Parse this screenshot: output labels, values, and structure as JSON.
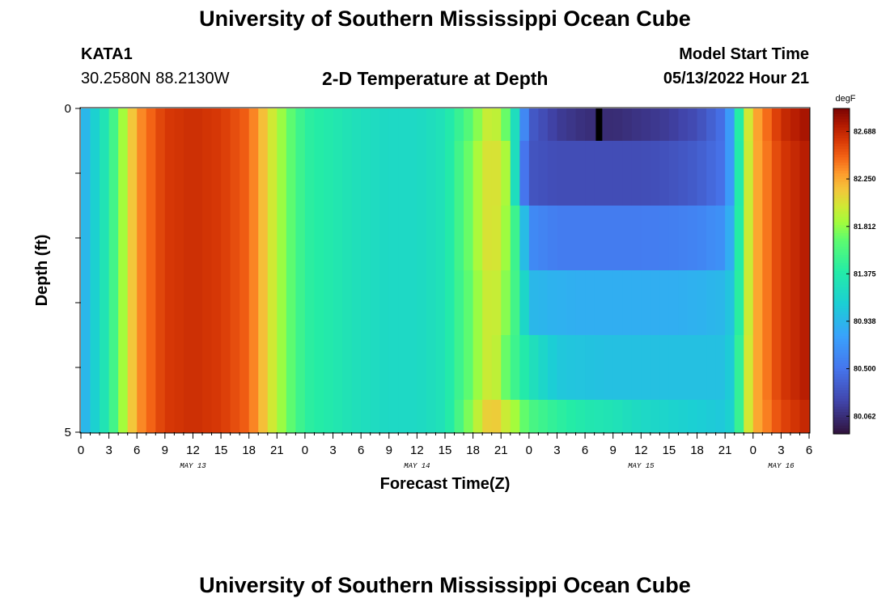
{
  "header": {
    "title": "University of Southern Mississippi Ocean Cube",
    "station": "KATA1",
    "coordinates": "30.2580N  88.2130W",
    "subtitle": "2-D Temperature at Depth",
    "model_start_label": "Model Start Time",
    "model_start_value": "05/13/2022 Hour 21"
  },
  "footer": {
    "title": "University of Southern Mississippi Ocean Cube"
  },
  "chart_data": {
    "type": "heatmap",
    "title": "2-D Temperature at Depth",
    "xlabel": "Forecast Time(Z)",
    "ylabel": "Depth (ft)",
    "ylim": [
      0,
      5
    ],
    "y_ticks": [
      "0",
      "5"
    ],
    "x_tick_labels": [
      "0",
      "3",
      "6",
      "9",
      "12",
      "15",
      "18",
      "21",
      "0",
      "3",
      "6",
      "9",
      "12",
      "15",
      "18",
      "21",
      "0",
      "3",
      "6",
      "9",
      "12",
      "15",
      "18",
      "21",
      "0",
      "3",
      "6"
    ],
    "date_labels": [
      {
        "label": "MAY 13",
        "hour": 12
      },
      {
        "label": "MAY 14",
        "hour": 36
      },
      {
        "label": "MAY 15",
        "hour": 60
      },
      {
        "label": "MAY 16",
        "hour": 75
      }
    ],
    "x_range_hours": [
      0,
      78
    ],
    "colorbar": {
      "unit": "degF",
      "ticks": [
        "82.688",
        "82.250",
        "81.812",
        "81.375",
        "80.938",
        "80.500",
        "80.062"
      ],
      "range": [
        79.9,
        82.9
      ]
    },
    "depth_layers": [
      {
        "label": "layer-1",
        "from_ft": 0.0,
        "to_ft": 0.5
      },
      {
        "label": "layer-2",
        "from_ft": 0.5,
        "to_ft": 1.5
      },
      {
        "label": "layer-3",
        "from_ft": 1.5,
        "to_ft": 2.5
      },
      {
        "label": "layer-4",
        "from_ft": 2.5,
        "to_ft": 3.5
      },
      {
        "label": "layer-5",
        "from_ft": 3.5,
        "to_ft": 4.5
      },
      {
        "label": "layer-6",
        "from_ft": 4.5,
        "to_ft": 5.0
      }
    ],
    "temperature_profile": [
      {
        "hour": 0,
        "values": [
          80.85,
          80.85,
          80.85,
          80.85,
          80.85,
          80.85
        ]
      },
      {
        "hour": 3,
        "values": [
          81.4,
          81.4,
          81.4,
          81.4,
          81.4,
          81.4
        ]
      },
      {
        "hour": 6,
        "values": [
          82.3,
          82.3,
          82.3,
          82.3,
          82.3,
          82.3
        ]
      },
      {
        "hour": 9,
        "values": [
          82.6,
          82.6,
          82.6,
          82.6,
          82.6,
          82.6
        ]
      },
      {
        "hour": 12,
        "values": [
          82.65,
          82.65,
          82.65,
          82.65,
          82.65,
          82.65
        ]
      },
      {
        "hour": 15,
        "values": [
          82.6,
          82.6,
          82.6,
          82.6,
          82.6,
          82.6
        ]
      },
      {
        "hour": 18,
        "values": [
          82.45,
          82.45,
          82.45,
          82.45,
          82.45,
          82.45
        ]
      },
      {
        "hour": 21,
        "values": [
          81.9,
          81.9,
          81.9,
          81.9,
          81.9,
          81.9
        ]
      },
      {
        "hour": 24,
        "values": [
          81.45,
          81.45,
          81.45,
          81.45,
          81.45,
          81.45
        ]
      },
      {
        "hour": 27,
        "values": [
          81.35,
          81.35,
          81.35,
          81.35,
          81.35,
          81.35
        ]
      },
      {
        "hour": 30,
        "values": [
          81.25,
          81.25,
          81.25,
          81.25,
          81.25,
          81.25
        ]
      },
      {
        "hour": 33,
        "values": [
          81.2,
          81.2,
          81.2,
          81.2,
          81.2,
          81.2
        ]
      },
      {
        "hour": 36,
        "values": [
          81.2,
          81.2,
          81.2,
          81.2,
          81.2,
          81.2
        ]
      },
      {
        "hour": 39,
        "values": [
          81.3,
          81.3,
          81.3,
          81.3,
          81.3,
          81.3
        ]
      },
      {
        "hour": 42,
        "values": [
          81.7,
          81.8,
          81.8,
          81.75,
          81.75,
          81.85
        ]
      },
      {
        "hour": 44,
        "values": [
          82.05,
          82.1,
          82.1,
          82.05,
          82.05,
          82.2
        ]
      },
      {
        "hour": 46,
        "values": [
          81.6,
          81.8,
          81.75,
          81.7,
          81.6,
          81.9
        ]
      },
      {
        "hour": 47,
        "values": [
          80.9,
          80.7,
          81.3,
          81.4,
          81.45,
          81.8
        ]
      },
      {
        "hour": 48,
        "values": [
          80.35,
          80.3,
          80.65,
          80.95,
          81.3,
          81.6
        ]
      },
      {
        "hour": 51,
        "values": [
          80.15,
          80.25,
          80.55,
          80.9,
          81.05,
          81.45
        ]
      },
      {
        "hour": 54,
        "values": [
          80.07,
          80.25,
          80.55,
          80.88,
          81.02,
          81.35
        ]
      },
      {
        "hour": 57,
        "values": [
          80.05,
          80.25,
          80.55,
          80.88,
          81.0,
          81.3
        ]
      },
      {
        "hour": 60,
        "values": [
          80.1,
          80.25,
          80.55,
          80.88,
          81.0,
          81.2
        ]
      },
      {
        "hour": 63,
        "values": [
          80.15,
          80.28,
          80.56,
          80.88,
          81.0,
          81.15
        ]
      },
      {
        "hour": 66,
        "values": [
          80.25,
          80.35,
          80.6,
          80.9,
          81.0,
          81.1
        ]
      },
      {
        "hour": 69,
        "values": [
          80.5,
          80.5,
          80.7,
          80.95,
          81.0,
          81.05
        ]
      },
      {
        "hour": 70,
        "values": [
          81.0,
          81.0,
          81.05,
          81.1,
          81.15,
          81.2
        ]
      },
      {
        "hour": 71,
        "values": [
          81.8,
          81.75,
          81.75,
          81.75,
          81.8,
          81.8
        ]
      },
      {
        "hour": 72,
        "values": [
          82.2,
          82.2,
          82.2,
          82.2,
          82.2,
          82.2
        ]
      },
      {
        "hour": 75,
        "values": [
          82.65,
          82.6,
          82.6,
          82.6,
          82.6,
          82.55
        ]
      },
      {
        "hour": 78,
        "values": [
          82.8,
          82.75,
          82.75,
          82.75,
          82.75,
          82.7
        ]
      }
    ],
    "missing_marker": {
      "hour": 55.5,
      "layer": 0
    }
  }
}
